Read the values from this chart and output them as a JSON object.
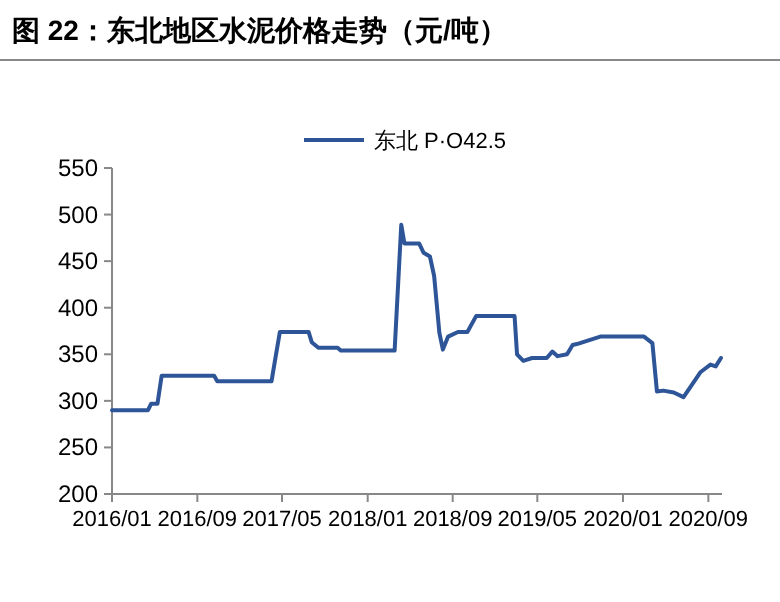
{
  "chart_data": {
    "type": "line",
    "title": "图 22：东北地区水泥价格走势（元/吨）",
    "x": [
      "2016-01-01",
      "2016-04-13",
      "2016-04-22",
      "2016-05-10",
      "2016-05-22",
      "2016-10-19",
      "2016-10-28",
      "2017-04-01",
      "2017-04-10",
      "2017-04-25",
      "2017-07-16",
      "2017-07-25",
      "2017-08-13",
      "2017-10-07",
      "2017-10-16",
      "2018-03-19",
      "2018-04-07",
      "2018-04-16",
      "2018-05-28",
      "2018-06-10",
      "2018-06-28",
      "2018-07-10",
      "2018-07-25",
      "2018-08-04",
      "2018-08-19",
      "2018-09-16",
      "2018-10-13",
      "2018-11-07",
      "2019-02-25",
      "2019-03-04",
      "2019-03-22",
      "2019-04-16",
      "2019-05-28",
      "2019-06-13",
      "2019-06-28",
      "2019-07-25",
      "2019-08-10",
      "2019-08-22",
      "2019-10-28",
      "2020-03-01",
      "2020-03-25",
      "2020-04-07",
      "2020-04-25",
      "2020-05-25",
      "2020-06-22",
      "2020-07-10",
      "2020-08-10",
      "2020-09-07",
      "2020-09-22",
      "2020-10-07"
    ],
    "series": [
      {
        "name": "东北 P·O42.5",
        "color": "#2e5597",
        "values": [
          290,
          290,
          297,
          297,
          327,
          327,
          321,
          321,
          341,
          374,
          374,
          363,
          357,
          357,
          354,
          354,
          489,
          469,
          469,
          459,
          455,
          434,
          373,
          355,
          369,
          374,
          374,
          391,
          391,
          350,
          343,
          346,
          346,
          353,
          348,
          350,
          360,
          361,
          369,
          369,
          362,
          310,
          311,
          309,
          304,
          314,
          331,
          339,
          337,
          346
        ]
      }
    ],
    "xlim": [
      "2016-01-01",
      "2020-10-10"
    ],
    "xticks": [
      {
        "value": "2016-01-01",
        "label": "2016/01"
      },
      {
        "value": "2016-09-01",
        "label": "2016/09"
      },
      {
        "value": "2017-05-01",
        "label": "2017/05"
      },
      {
        "value": "2018-01-01",
        "label": "2018/01"
      },
      {
        "value": "2018-09-01",
        "label": "2018/09"
      },
      {
        "value": "2019-05-01",
        "label": "2019/05"
      },
      {
        "value": "2020-01-01",
        "label": "2020/01"
      },
      {
        "value": "2020-09-01",
        "label": "2020/09"
      }
    ],
    "ylim": [
      200,
      550
    ],
    "yticks": [
      200,
      250,
      300,
      350,
      400,
      450,
      500,
      550
    ],
    "legend": "top"
  }
}
